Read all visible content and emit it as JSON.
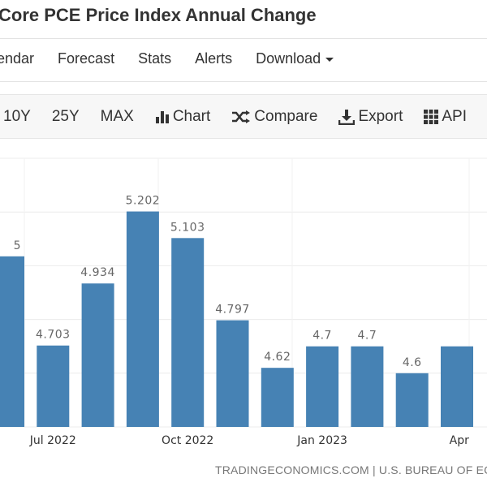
{
  "header": {
    "title": "Core PCE Price Index Annual Change"
  },
  "nav": {
    "items": [
      "endar",
      "Forecast",
      "Stats",
      "Alerts",
      "Download"
    ]
  },
  "toolbar": {
    "items": [
      {
        "label": "10Y",
        "icon": ""
      },
      {
        "label": "25Y",
        "icon": ""
      },
      {
        "label": "MAX",
        "icon": ""
      },
      {
        "label": "Chart",
        "icon": "bar-chart-icon"
      },
      {
        "label": "Compare",
        "icon": "shuffle-icon"
      },
      {
        "label": "Export",
        "icon": "download-icon"
      },
      {
        "label": "API",
        "icon": "grid-icon"
      }
    ]
  },
  "footer": {
    "source": "TRADINGECONOMICS.COM | U.S. BUREAU OF ECO"
  },
  "colors": {
    "bar": "#4682b4",
    "label": "#666666",
    "grid": "#ececec"
  },
  "chart_data": {
    "type": "bar",
    "values": [
      5.035,
      4.703,
      4.934,
      5.202,
      5.103,
      4.797,
      4.62,
      4.7,
      4.7,
      4.6,
      4.7
    ],
    "data_labels": [
      "5",
      "4.703",
      "4.934",
      "5.202",
      "5.103",
      "4.797",
      "4.62",
      "4.7",
      "4.7",
      "4.6",
      ""
    ],
    "tick_labels": [
      {
        "label": "Jul 2022",
        "bar": 1
      },
      {
        "label": "Oct 2022",
        "bar": 4
      },
      {
        "label": "Jan 2023",
        "bar": 7
      },
      {
        "label": "Apr",
        "bar": 10.05
      }
    ],
    "ylim": [
      4.4,
      5.4
    ],
    "gridlines": [
      4.4,
      4.6,
      4.8,
      5.0,
      5.2,
      5.4
    ],
    "grid": true
  }
}
